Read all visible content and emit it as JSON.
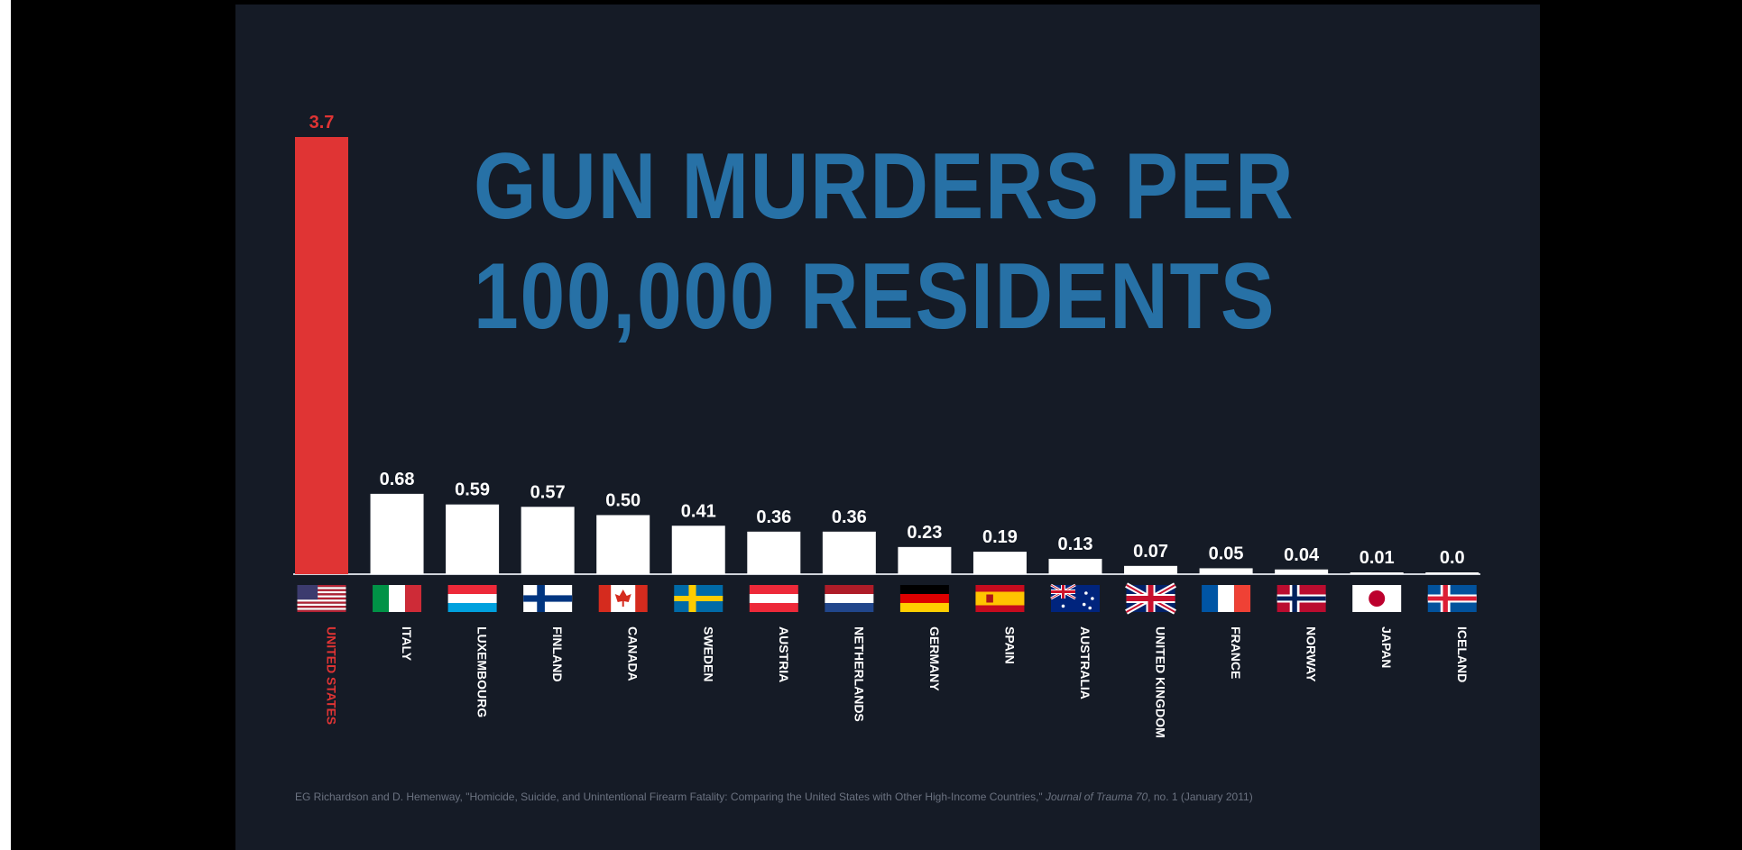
{
  "chart_data": {
    "type": "bar",
    "title_lines": [
      "GUN MURDERS PER",
      "100,000 RESIDENTS"
    ],
    "categories": [
      "UNITED STATES",
      "ITALY",
      "LUXEMBOURG",
      "FINLAND",
      "CANADA",
      "SWEDEN",
      "AUSTRIA",
      "NETHERLANDS",
      "GERMANY",
      "SPAIN",
      "AUSTRALIA",
      "UNITED KINGDOM",
      "FRANCE",
      "NORWAY",
      "JAPAN",
      "ICELAND"
    ],
    "values": [
      3.7,
      0.68,
      0.59,
      0.57,
      0.5,
      0.41,
      0.36,
      0.36,
      0.23,
      0.19,
      0.13,
      0.07,
      0.05,
      0.04,
      0.01,
      0.0
    ],
    "value_labels": [
      "3.7",
      "0.68",
      "0.59",
      "0.57",
      "0.50",
      "0.41",
      "0.36",
      "0.36",
      "0.23",
      "0.19",
      "0.13",
      "0.07",
      "0.05",
      "0.04",
      "0.01",
      "0.0"
    ],
    "flags": [
      "us-flag-icon",
      "italy-flag-icon",
      "luxembourg-flag-icon",
      "finland-flag-icon",
      "canada-flag-icon",
      "sweden-flag-icon",
      "austria-flag-icon",
      "netherlands-flag-icon",
      "germany-flag-icon",
      "spain-flag-icon",
      "australia-flag-icon",
      "uk-flag-icon",
      "france-flag-icon",
      "norway-flag-icon",
      "japan-flag-icon",
      "iceland-flag-icon"
    ],
    "ylim": [
      0,
      3.7
    ],
    "highlight_index": 0,
    "colors": {
      "background": "#151b26",
      "highlight": "#e03434",
      "bar": "#ffffff",
      "title": "#2771a6",
      "text": "#ffffff",
      "source": "#6b7280"
    },
    "grid": false,
    "legend": "none"
  },
  "source": {
    "text_before": "EG Richardson and D. Hemenway, \"Homicide, Suicide, and Unintentional Firearm Fatality: Comparing the United States with Other High-Income Countries,\" ",
    "journal": "Journal of Trauma 70",
    "text_after": ", no. 1 (January 2011)"
  }
}
